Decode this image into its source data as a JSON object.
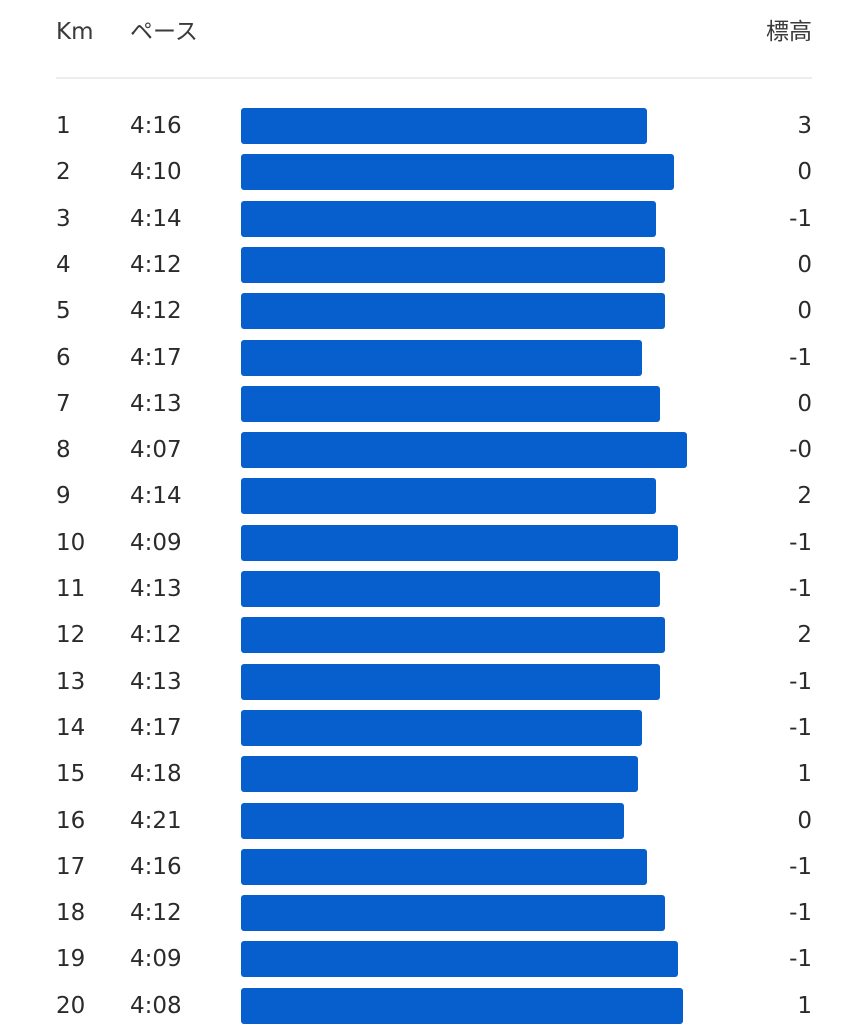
{
  "header": {
    "km_label": "Km",
    "pace_label": "ペース",
    "elevation_label": "標高"
  },
  "colors": {
    "bar": "#075fce",
    "divider": "#ececec",
    "text": "#2b2b2b"
  },
  "splits": [
    {
      "km": "1",
      "pace": "4:16",
      "elevation": "3"
    },
    {
      "km": "2",
      "pace": "4:10",
      "elevation": "0"
    },
    {
      "km": "3",
      "pace": "4:14",
      "elevation": "-1"
    },
    {
      "km": "4",
      "pace": "4:12",
      "elevation": "0"
    },
    {
      "km": "5",
      "pace": "4:12",
      "elevation": "0"
    },
    {
      "km": "6",
      "pace": "4:17",
      "elevation": "-1"
    },
    {
      "km": "7",
      "pace": "4:13",
      "elevation": "0"
    },
    {
      "km": "8",
      "pace": "4:07",
      "elevation": "-0"
    },
    {
      "km": "9",
      "pace": "4:14",
      "elevation": "2"
    },
    {
      "km": "10",
      "pace": "4:09",
      "elevation": "-1"
    },
    {
      "km": "11",
      "pace": "4:13",
      "elevation": "-1"
    },
    {
      "km": "12",
      "pace": "4:12",
      "elevation": "2"
    },
    {
      "km": "13",
      "pace": "4:13",
      "elevation": "-1"
    },
    {
      "km": "14",
      "pace": "4:17",
      "elevation": "-1"
    },
    {
      "km": "15",
      "pace": "4:18",
      "elevation": "1"
    },
    {
      "km": "16",
      "pace": "4:21",
      "elevation": "0"
    },
    {
      "km": "17",
      "pace": "4:16",
      "elevation": "-1"
    },
    {
      "km": "18",
      "pace": "4:12",
      "elevation": "-1"
    },
    {
      "km": "19",
      "pace": "4:09",
      "elevation": "-1"
    },
    {
      "km": "20",
      "pace": "4:08",
      "elevation": "1"
    }
  ]
}
